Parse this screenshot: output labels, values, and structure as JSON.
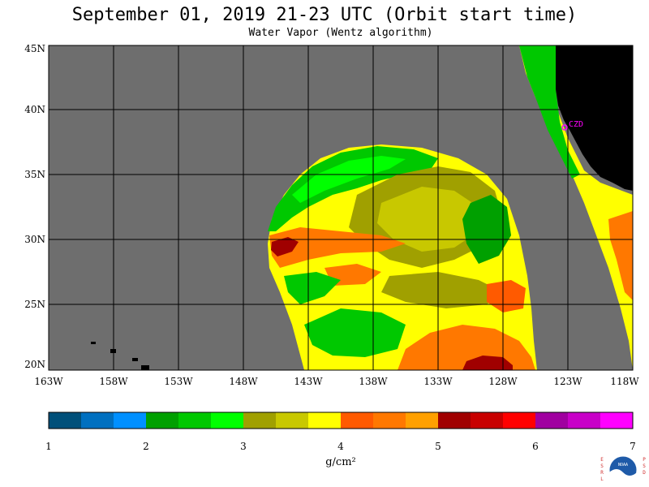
{
  "title": "September 01, 2019  21-23 UTC  (Orbit start time)",
  "subtitle": "Water Vapor (Wentz algorithm)",
  "map": {
    "lat_labels": [
      "45N",
      "40N",
      "35N",
      "30N",
      "25N",
      "20N"
    ],
    "lon_labels": [
      "163W",
      "158W",
      "153W",
      "148W",
      "143W",
      "138W",
      "133W",
      "128W",
      "123W",
      "118W"
    ],
    "station_label": "CZD",
    "colors": {
      "no_data": "#6e6e6e",
      "land": "#000000",
      "grid": "#000000",
      "station": "#ff00ff"
    }
  },
  "colorbar": {
    "ticks": [
      "1",
      "2",
      "3",
      "4",
      "5",
      "6",
      "7"
    ],
    "units": "g/cm²",
    "colors": [
      "#00507a",
      "#0070c0",
      "#0090ff",
      "#00a000",
      "#00c800",
      "#00ff00",
      "#a0a000",
      "#c8c800",
      "#ffff00",
      "#ff5a00",
      "#ff7800",
      "#ffa000",
      "#a00000",
      "#c80000",
      "#ff0000",
      "#a000a0",
      "#c800c8",
      "#ff00ff"
    ]
  },
  "logo": {
    "left_letters": "ESRL",
    "right_letters": "PSD",
    "center_text": "NOAA"
  }
}
